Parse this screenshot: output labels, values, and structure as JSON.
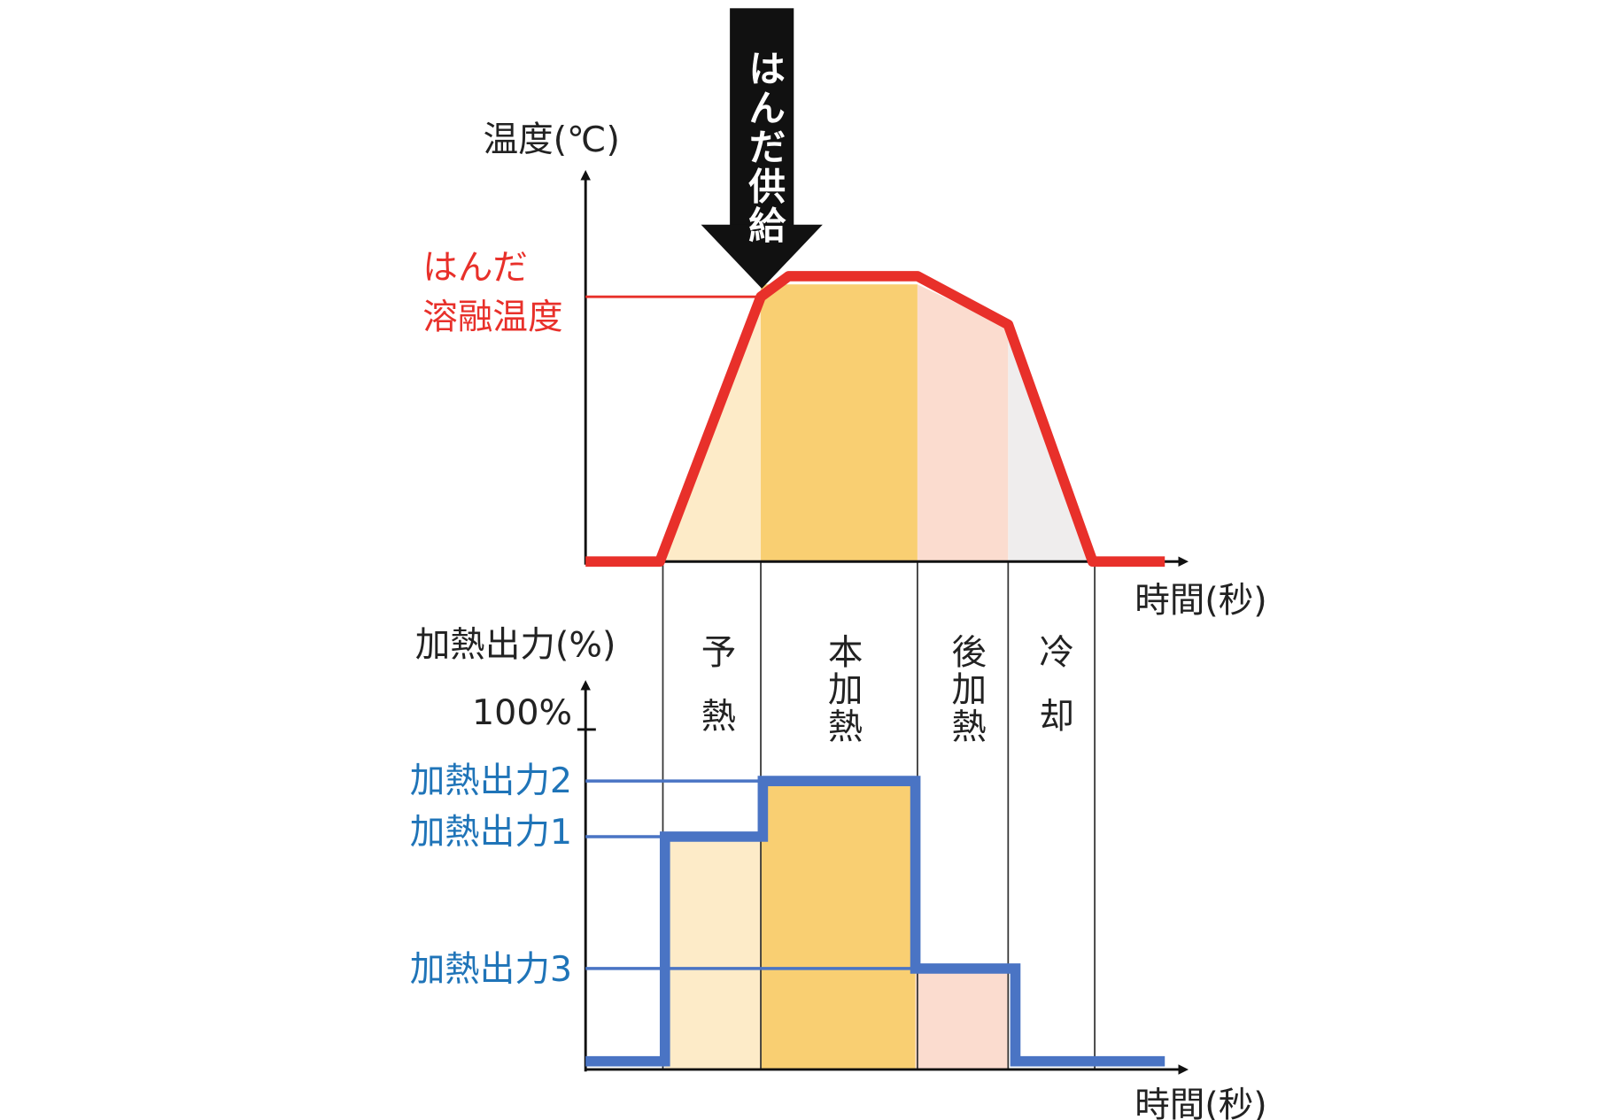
{
  "top_chart": {
    "y_label": "温度(℃)",
    "melt_label_line1": "はんだ",
    "melt_label_line2": "溶融温度",
    "x_label": "時間(秒)",
    "arrow_label": "はんだ供給"
  },
  "phases": [
    "予熱",
    "本加熱",
    "後加熱",
    "冷却"
  ],
  "bottom_chart": {
    "y_label": "加熱出力(%)",
    "max_label": "100%",
    "levels": [
      "加熱出力2",
      "加熱出力1",
      "加熱出力3"
    ],
    "x_label": "時間(秒)"
  }
}
